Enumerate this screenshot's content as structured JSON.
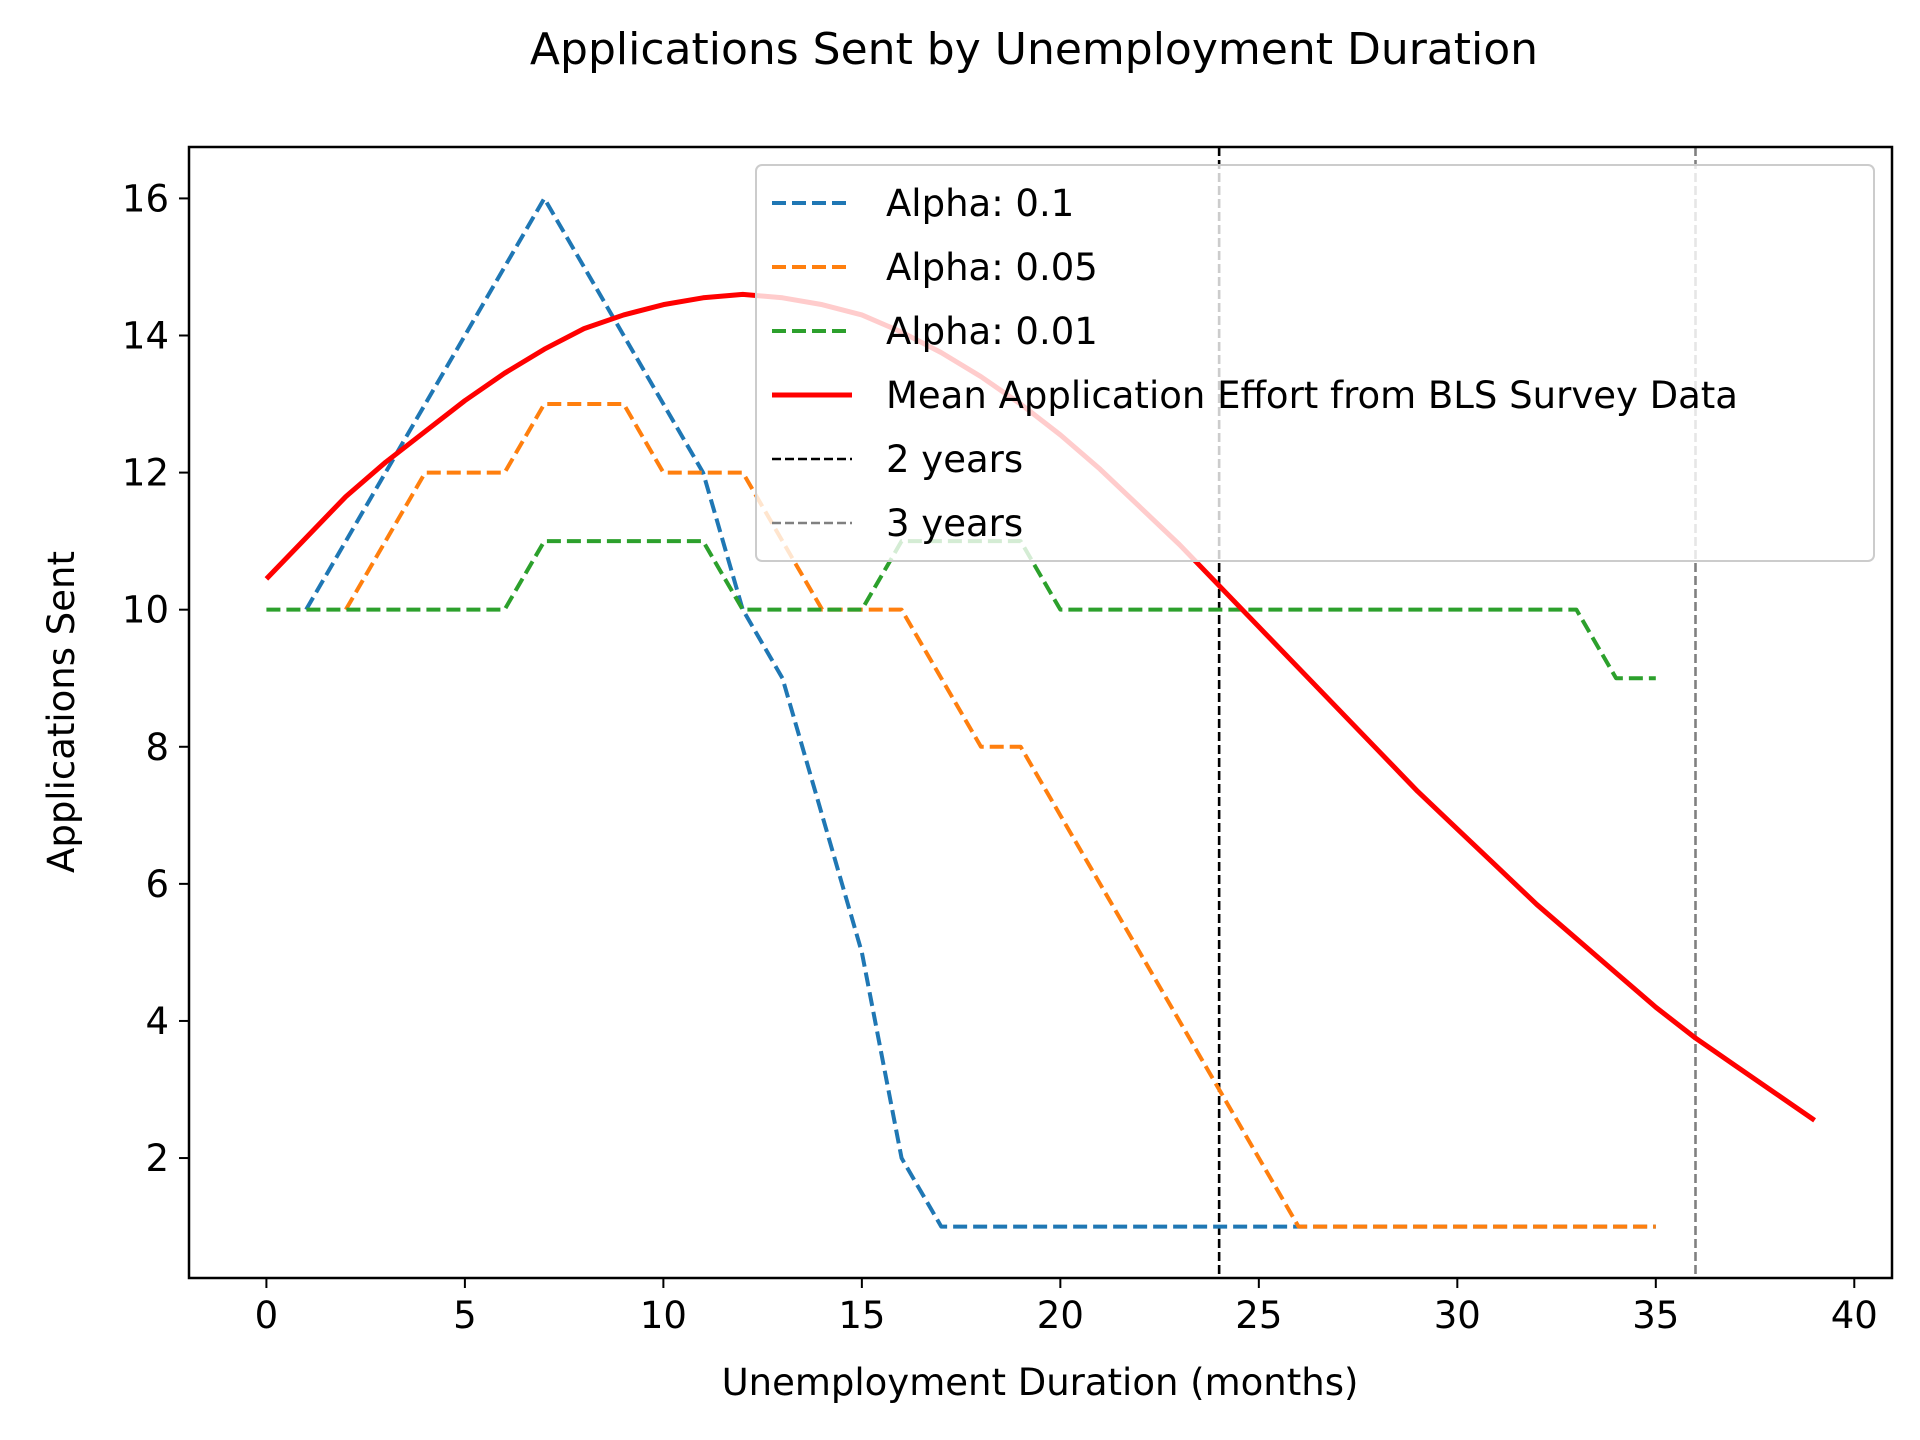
{
  "chart_data": {
    "type": "line",
    "title": "Applications Sent by Unemployment Duration",
    "xlabel": "Unemployment Duration (months)",
    "ylabel": "Applications Sent",
    "xlim": [
      -1.95,
      40.95
    ],
    "ylim": [
      0.25,
      16.75
    ],
    "xticks": [
      0,
      5,
      10,
      15,
      20,
      25,
      30,
      35,
      40
    ],
    "yticks": [
      2,
      4,
      6,
      8,
      10,
      12,
      14,
      16
    ],
    "grid": false,
    "legend_position": "upper-right",
    "series": [
      {
        "name": "Alpha: 0.1",
        "color": "#1f77b4",
        "style": "dashed",
        "x": [
          1,
          2,
          3,
          4,
          5,
          6,
          7,
          8,
          9,
          10,
          11,
          12,
          13,
          14,
          15,
          16,
          17,
          18,
          19,
          20,
          21,
          22,
          23,
          24,
          25,
          26,
          27,
          28,
          29,
          30,
          31,
          32,
          33,
          34,
          35
        ],
        "y": [
          10,
          11,
          12,
          13,
          14,
          15,
          16,
          15,
          14,
          13,
          12,
          10,
          9,
          7,
          5,
          2,
          1,
          1,
          1,
          1,
          1,
          1,
          1,
          1,
          1,
          1,
          1,
          1,
          1,
          1,
          1,
          1,
          1,
          1,
          1
        ]
      },
      {
        "name": "Alpha: 0.05",
        "color": "#ff7f0e",
        "style": "dashed",
        "x": [
          2,
          3,
          4,
          5,
          6,
          7,
          8,
          9,
          10,
          11,
          12,
          13,
          14,
          15,
          16,
          17,
          18,
          19,
          20,
          21,
          22,
          23,
          24,
          25,
          26,
          27,
          28,
          29,
          30,
          31,
          32,
          33,
          34,
          35
        ],
        "y": [
          10,
          11,
          12,
          12,
          12,
          13,
          13,
          13,
          12,
          12,
          12,
          11,
          10,
          10,
          10,
          9,
          8,
          8,
          7,
          6,
          5,
          4,
          3,
          2,
          1,
          1,
          1,
          1,
          1,
          1,
          1,
          1,
          1,
          1
        ]
      },
      {
        "name": "Alpha: 0.01",
        "color": "#2ca02c",
        "style": "dashed",
        "x": [
          0,
          1,
          2,
          3,
          4,
          5,
          6,
          7,
          8,
          9,
          10,
          11,
          12,
          13,
          14,
          15,
          16,
          17,
          18,
          19,
          20,
          21,
          22,
          23,
          24,
          25,
          26,
          27,
          28,
          29,
          30,
          31,
          32,
          33,
          34,
          35
        ],
        "y": [
          10,
          10,
          10,
          10,
          10,
          10,
          10,
          11,
          11,
          11,
          11,
          11,
          10,
          10,
          10,
          10,
          11,
          11,
          11,
          11,
          10,
          10,
          10,
          10,
          10,
          10,
          10,
          10,
          10,
          10,
          10,
          10,
          10,
          10,
          9,
          9
        ]
      },
      {
        "name": "Mean Application Effort from BLS Survey Data",
        "color": "#ff0000",
        "style": "solid",
        "x": [
          0,
          1,
          2,
          3,
          4,
          5,
          6,
          7,
          8,
          9,
          10,
          11,
          12,
          13,
          14,
          15,
          16,
          17,
          18,
          19,
          20,
          21,
          22,
          23,
          24,
          25,
          26,
          27,
          28,
          29,
          30,
          31,
          32,
          33,
          34,
          35,
          36,
          37,
          38,
          39
        ],
        "y": [
          10.45,
          11.05,
          11.65,
          12.15,
          12.6,
          13.05,
          13.45,
          13.8,
          14.1,
          14.3,
          14.45,
          14.55,
          14.6,
          14.55,
          14.45,
          14.3,
          14.05,
          13.75,
          13.4,
          13.0,
          12.55,
          12.05,
          11.5,
          10.95,
          10.35,
          9.75,
          9.15,
          8.55,
          7.95,
          7.35,
          6.8,
          6.25,
          5.7,
          5.2,
          4.7,
          4.2,
          3.75,
          3.35,
          2.95,
          2.55
        ]
      }
    ],
    "reference_lines": [
      {
        "name": "2 years",
        "x": 24,
        "color": "#000000",
        "style": "dashed"
      },
      {
        "name": "3 years",
        "x": 36,
        "color": "#808080",
        "style": "dashed"
      }
    ]
  }
}
